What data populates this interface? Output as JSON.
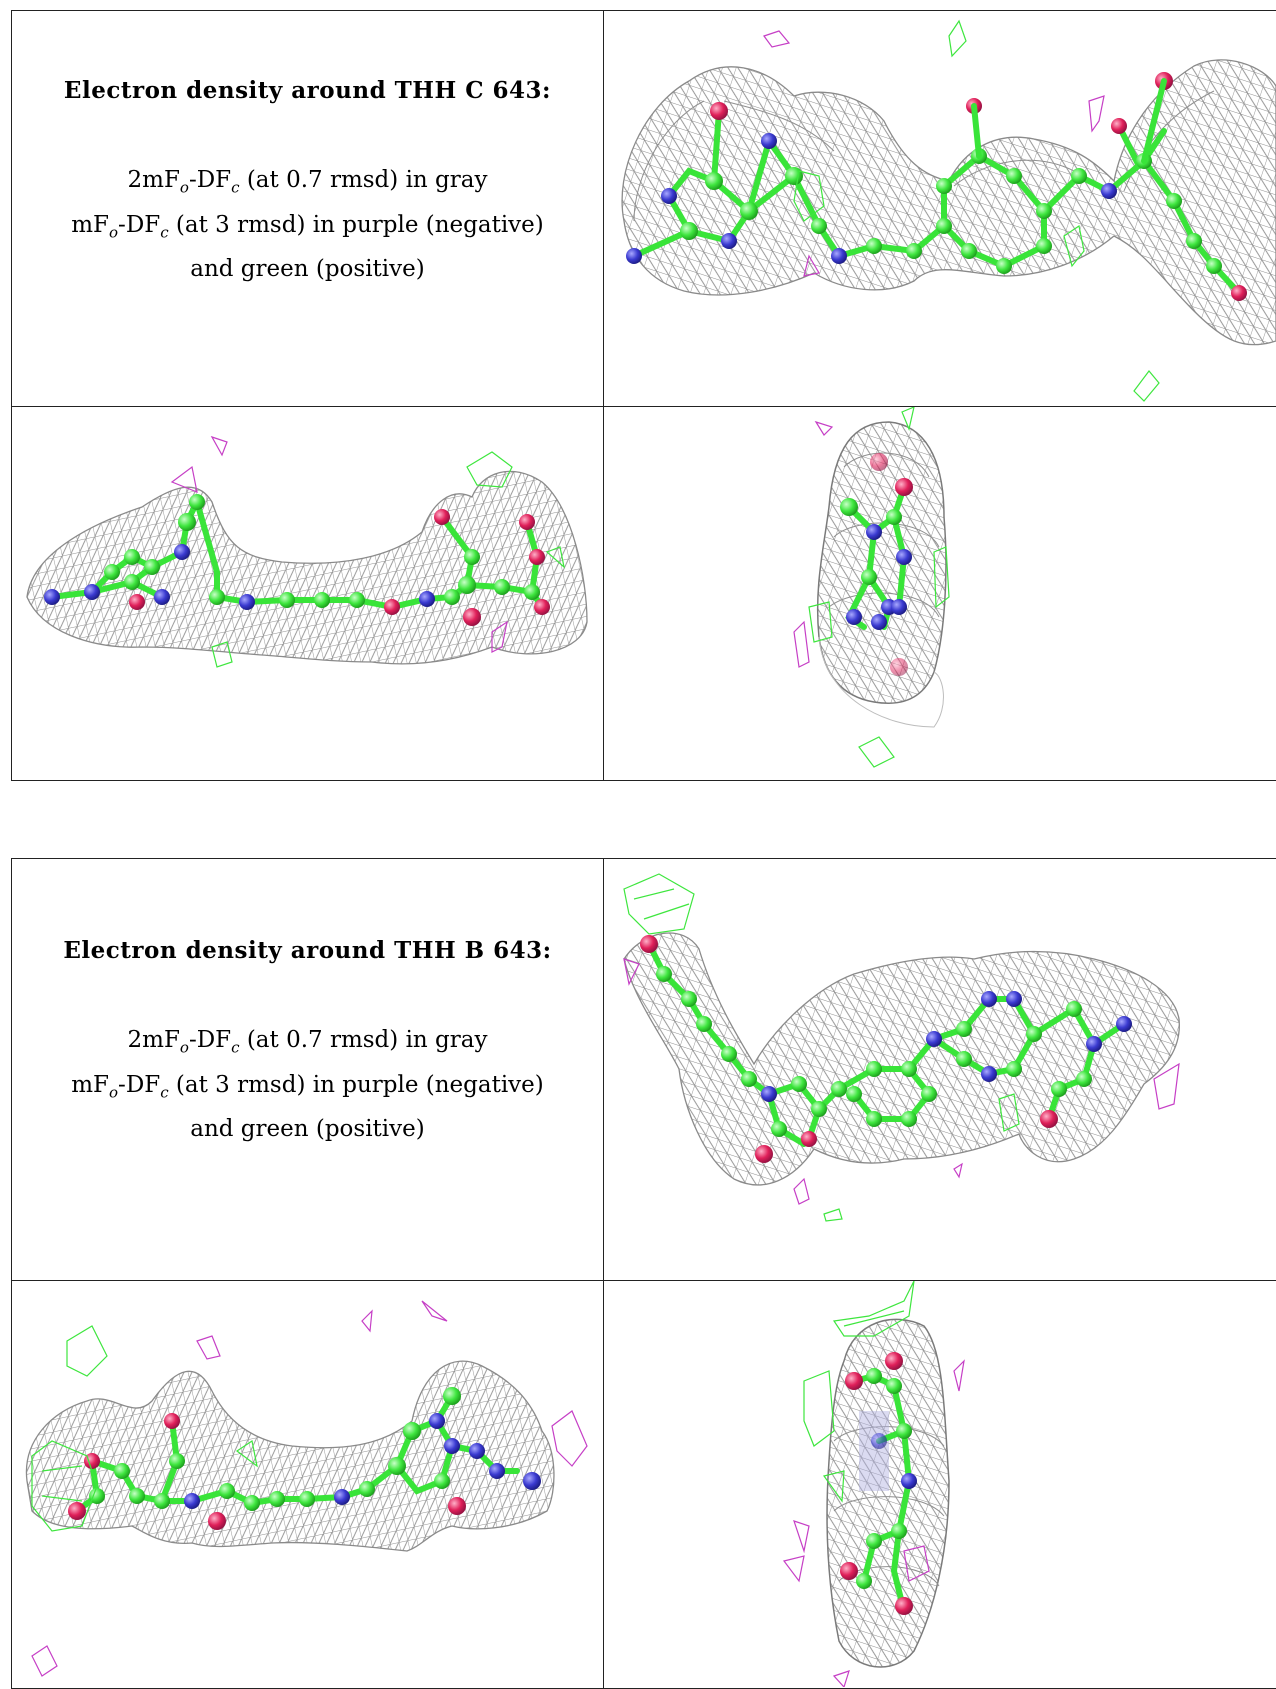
{
  "panels": [
    {
      "title": "Electron density around THH C 643:",
      "line1": {
        "a": "2mF",
        "sub1": "o",
        "b": "-DF",
        "sub2": "c",
        "c": " (at 0.7 rmsd) in gray"
      },
      "line2": {
        "a": "mF",
        "sub1": "o",
        "b": "-DF",
        "sub2": "c",
        "c": " (at 3 rmsd) in purple (negative)"
      },
      "line3": "and green (positive)"
    },
    {
      "title": "Electron density around THH B 643:",
      "line1": {
        "a": "2mF",
        "sub1": "o",
        "b": "-DF",
        "sub2": "c",
        "c": " (at 0.7 rmsd) in gray"
      },
      "line2": {
        "a": "mF",
        "sub1": "o",
        "b": "-DF",
        "sub2": "c",
        "c": " (at 3 rmsd) in purple (negative)"
      },
      "line3": "and green (positive)"
    }
  ],
  "colors": {
    "mesh_gray": "#8f8f8f",
    "carbon_green": "#39e439",
    "nitrogen_blue": "#3a3ad0",
    "oxygen_red": "#e0205a",
    "negative_purple": "#c63fc6",
    "positive_green": "#3ee63e"
  },
  "images": [
    "density-map-top-view",
    "density-map-side-view",
    "density-map-end-view",
    "density-map-top-view",
    "density-map-side-view",
    "density-map-end-view"
  ]
}
